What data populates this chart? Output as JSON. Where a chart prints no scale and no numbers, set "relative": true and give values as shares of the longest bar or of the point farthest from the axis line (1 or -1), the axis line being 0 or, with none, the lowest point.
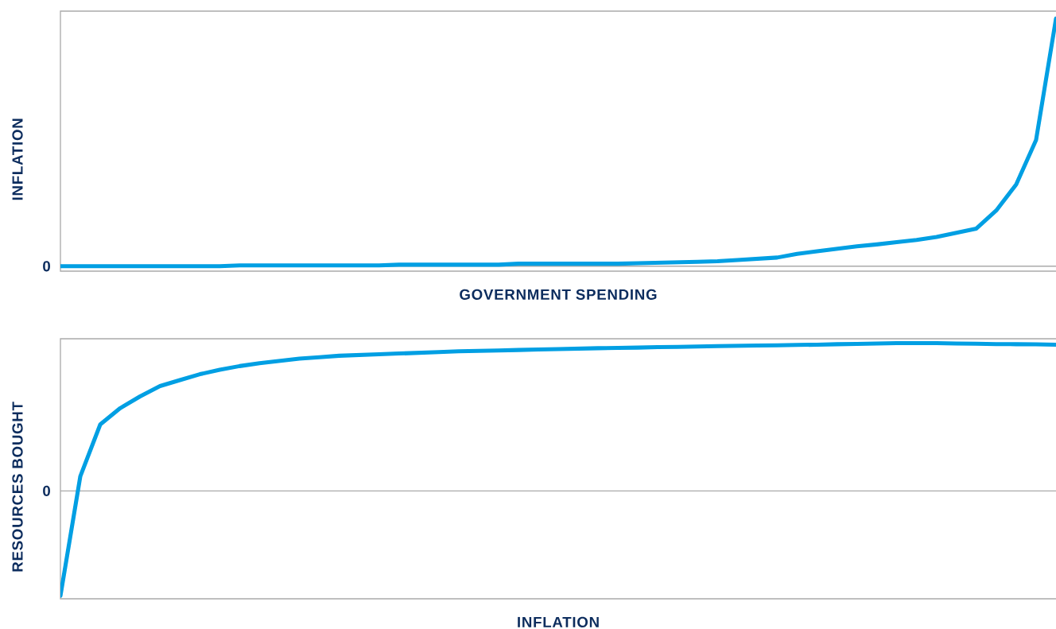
{
  "chart_data": [
    {
      "type": "line",
      "ylabel": "INFLATION",
      "xlabel": "GOVERNMENT SPENDING",
      "relative": true,
      "color": "#009fe3",
      "categories": [
        null,
        null,
        null,
        null,
        null,
        null,
        null,
        null,
        null,
        null,
        null,
        null,
        null,
        null,
        null,
        null,
        null,
        null,
        null,
        null,
        null,
        null,
        null,
        null,
        null,
        null,
        null,
        null,
        null,
        null,
        null,
        null,
        null,
        null,
        null,
        null,
        null,
        null,
        null,
        null,
        null,
        null,
        null,
        null,
        null,
        null,
        null,
        null,
        null,
        null,
        null
      ],
      "values": [
        0,
        0,
        0,
        0,
        0,
        0,
        0,
        0,
        0,
        0.003,
        0.003,
        0.003,
        0.003,
        0.003,
        0.003,
        0.003,
        0.003,
        0.006,
        0.006,
        0.006,
        0.006,
        0.006,
        0.006,
        0.01,
        0.01,
        0.01,
        0.01,
        0.01,
        0.01,
        0.012,
        0.014,
        0.016,
        0.018,
        0.02,
        0.025,
        0.03,
        0.035,
        0.05,
        0.06,
        0.07,
        0.08,
        0.088,
        0.097,
        0.106,
        0.118,
        0.135,
        0.152,
        0.225,
        0.33,
        0.51,
        1
      ],
      "ref_lines": [
        {
          "axis": "y",
          "value": 0,
          "label": "0"
        }
      ]
    },
    {
      "type": "line",
      "ylabel": "RESOURCES BOUGHT",
      "xlabel": "INFLATION",
      "relative": true,
      "color": "#009fe3",
      "categories": [
        null,
        null,
        null,
        null,
        null,
        null,
        null,
        null,
        null,
        null,
        null,
        null,
        null,
        null,
        null,
        null,
        null,
        null,
        null,
        null,
        null,
        null,
        null,
        null,
        null,
        null,
        null,
        null,
        null,
        null,
        null,
        null,
        null,
        null,
        null,
        null,
        null,
        null,
        null,
        null,
        null,
        null,
        null,
        null,
        null,
        null,
        null,
        null,
        null,
        null,
        null
      ],
      "values": [
        -0.71,
        0.1,
        0.45,
        0.56,
        0.64,
        0.71,
        0.75,
        0.79,
        0.82,
        0.845,
        0.865,
        0.88,
        0.895,
        0.905,
        0.915,
        0.92,
        0.925,
        0.93,
        0.935,
        0.94,
        0.945,
        0.948,
        0.951,
        0.954,
        0.957,
        0.96,
        0.963,
        0.966,
        0.968,
        0.97,
        0.973,
        0.975,
        0.978,
        0.98,
        0.982,
        0.984,
        0.986,
        0.988,
        0.99,
        0.993,
        0.995,
        0.998,
        1,
        1,
        1,
        0.998,
        0.996,
        0.994,
        0.993,
        0.992,
        0.99
      ],
      "ref_lines": [
        {
          "axis": "y",
          "value": 0,
          "label": "0"
        }
      ]
    }
  ]
}
